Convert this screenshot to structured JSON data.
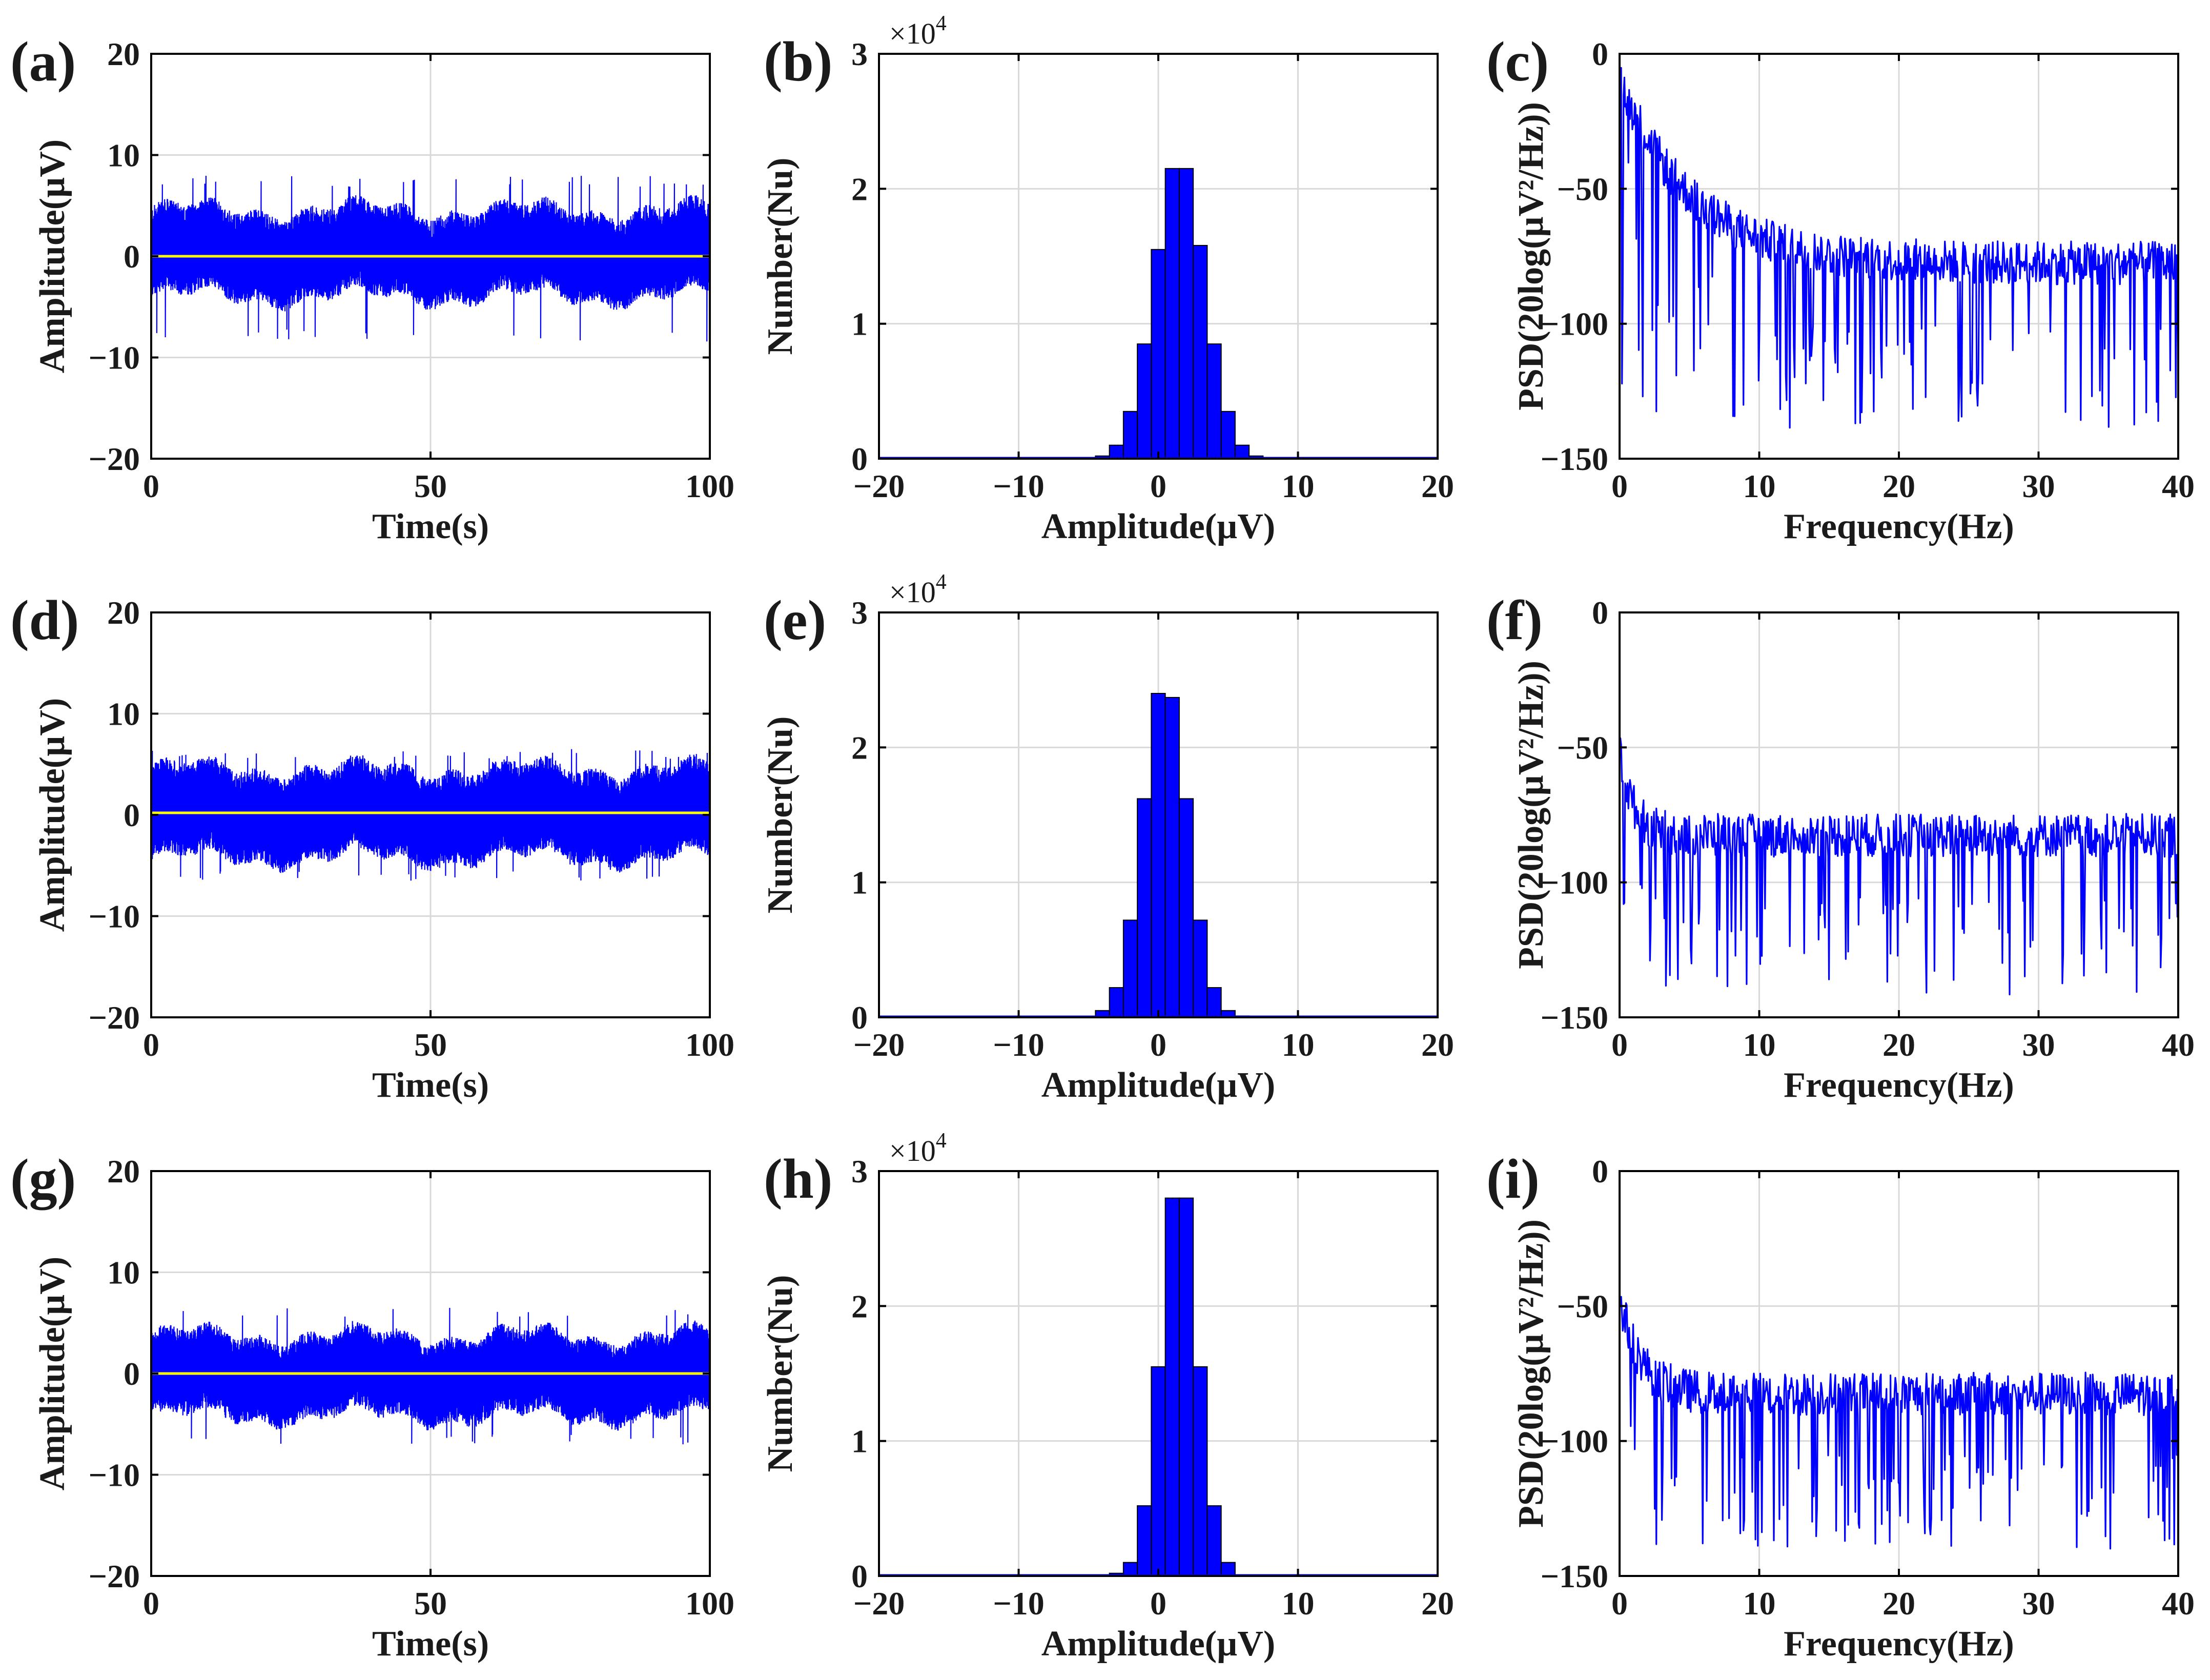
{
  "figure": {
    "colors": {
      "signal": "#0000ff",
      "mean_line": "#ffff00",
      "bar_fill": "#0000ff",
      "bar_edge": "#000000",
      "grid": "#d9d9d9",
      "axis": "#000000"
    }
  },
  "chart_data": [
    {
      "id": "a",
      "panel_label": "(a)",
      "type": "line",
      "title": "",
      "xlabel": "Time(s)",
      "ylabel": "Amplitude(µV)",
      "xlim": [
        0,
        100
      ],
      "ylim": [
        -20,
        20
      ],
      "xticks": [
        "0",
        "50",
        "100"
      ],
      "yticks": [
        "−20",
        "−10",
        "0",
        "10",
        "20"
      ],
      "series": [
        {
          "name": "signal",
          "kind": "noise",
          "mean": 0,
          "upper": 4.8,
          "lower": -4.2,
          "max": 8,
          "min": -8.5,
          "x_range": [
            0,
            100
          ]
        },
        {
          "name": "mean",
          "kind": "hline",
          "value": 0
        }
      ],
      "grid": true
    },
    {
      "id": "b",
      "panel_label": "(b)",
      "type": "bar",
      "title": "",
      "xlabel": "Amplitude(µV)",
      "ylabel": "Number(Nu)",
      "xlim": [
        -20,
        20
      ],
      "ylim": [
        0,
        3
      ],
      "y_exponent": "×10",
      "y_exponent_power": "4",
      "xticks": [
        "−20",
        "−10",
        "0",
        "10",
        "20"
      ],
      "yticks": [
        "0",
        "1",
        "2",
        "3"
      ],
      "bin_centers": [
        -5,
        -4,
        -3,
        -2,
        -1,
        0,
        1,
        2,
        3,
        4,
        5,
        6,
        7
      ],
      "values": [
        0.005,
        0.02,
        0.1,
        0.35,
        0.85,
        1.55,
        2.15,
        2.15,
        1.58,
        0.85,
        0.35,
        0.1,
        0.02
      ],
      "grid": true
    },
    {
      "id": "c",
      "panel_label": "(c)",
      "type": "line",
      "title": "",
      "xlabel": "Frequency(Hz)",
      "ylabel": "PSD(20log(µV²/Hz))",
      "xlim": [
        0,
        40
      ],
      "ylim": [
        -150,
        0
      ],
      "xticks": [
        "0",
        "10",
        "20",
        "30",
        "40"
      ],
      "yticks": [
        "−150",
        "−100",
        "−50",
        "0"
      ],
      "series": [
        {
          "name": "psd",
          "kind": "spectrum",
          "start_peak": -5,
          "floor_top": -68,
          "floor_mean": -80,
          "dip_min": -140,
          "decay_hz": 5
        }
      ],
      "grid": true
    },
    {
      "id": "d",
      "panel_label": "(d)",
      "type": "line",
      "title": "",
      "xlabel": "Time(s)",
      "ylabel": "Amplitude(µV)",
      "xlim": [
        0,
        100
      ],
      "ylim": [
        -20,
        20
      ],
      "xticks": [
        "0",
        "50",
        "100"
      ],
      "yticks": [
        "−20",
        "−10",
        "0",
        "10",
        "20"
      ],
      "series": [
        {
          "name": "signal",
          "kind": "noise",
          "mean": 0,
          "upper": 4.8,
          "lower": -4.5,
          "max": 6.5,
          "min": -6.5,
          "x_range": [
            0,
            100
          ]
        },
        {
          "name": "mean",
          "kind": "hline",
          "value": 0.2
        }
      ],
      "grid": true
    },
    {
      "id": "e",
      "panel_label": "(e)",
      "type": "bar",
      "title": "",
      "xlabel": "Amplitude(µV)",
      "ylabel": "Number(Nu)",
      "xlim": [
        -20,
        20
      ],
      "ylim": [
        0,
        3
      ],
      "y_exponent": "×10",
      "y_exponent_power": "4",
      "xticks": [
        "−20",
        "−10",
        "0",
        "10",
        "20"
      ],
      "yticks": [
        "0",
        "1",
        "2",
        "3"
      ],
      "bin_centers": [
        -4,
        -3,
        -2,
        -1,
        0,
        1,
        2,
        3,
        4,
        5,
        6
      ],
      "values": [
        0.05,
        0.22,
        0.72,
        1.62,
        2.4,
        2.37,
        1.62,
        0.72,
        0.22,
        0.05,
        0.01
      ],
      "grid": true
    },
    {
      "id": "f",
      "panel_label": "(f)",
      "type": "line",
      "title": "",
      "xlabel": "Frequency(Hz)",
      "ylabel": "PSD(20log(µV²/Hz))",
      "xlim": [
        0,
        40
      ],
      "ylim": [
        -150,
        0
      ],
      "xticks": [
        "0",
        "10",
        "20",
        "30",
        "40"
      ],
      "yticks": [
        "−150",
        "−100",
        "−50",
        "0"
      ],
      "series": [
        {
          "name": "psd",
          "kind": "spectrum",
          "start_peak": -52,
          "floor_top": -68,
          "floor_mean": -85,
          "dip_min": -142,
          "decay_hz": 1
        }
      ],
      "grid": true
    },
    {
      "id": "g",
      "panel_label": "(g)",
      "type": "line",
      "title": "",
      "xlabel": "Time(s)",
      "ylabel": "Amplitude(µV)",
      "xlim": [
        0,
        100
      ],
      "ylim": [
        -20,
        20
      ],
      "xticks": [
        "0",
        "50",
        "100"
      ],
      "yticks": [
        "−20",
        "−10",
        "0",
        "10",
        "20"
      ],
      "series": [
        {
          "name": "signal",
          "kind": "noise",
          "mean": 0,
          "upper": 4.0,
          "lower": -4.5,
          "max": 6.5,
          "min": -7,
          "x_range": [
            0,
            100
          ]
        },
        {
          "name": "mean",
          "kind": "hline",
          "value": 0
        }
      ],
      "grid": true
    },
    {
      "id": "h",
      "panel_label": "(h)",
      "type": "bar",
      "title": "",
      "xlabel": "Amplitude(µV)",
      "ylabel": "Number(Nu)",
      "xlim": [
        -20,
        20
      ],
      "ylim": [
        0,
        3
      ],
      "y_exponent": "×10",
      "y_exponent_power": "4",
      "xticks": [
        "−20",
        "−10",
        "0",
        "10",
        "20"
      ],
      "yticks": [
        "0",
        "1",
        "2",
        "3"
      ],
      "bin_centers": [
        -3,
        -2,
        -1,
        0,
        1,
        2,
        3,
        4,
        5
      ],
      "values": [
        0.02,
        0.1,
        0.52,
        1.55,
        2.8,
        2.8,
        1.55,
        0.52,
        0.1
      ],
      "grid": true
    },
    {
      "id": "i",
      "panel_label": "(i)",
      "type": "line",
      "title": "",
      "xlabel": "Frequency(Hz)",
      "ylabel": "PSD(20log(µV²/Hz))",
      "xlim": [
        0,
        40
      ],
      "ylim": [
        -150,
        0
      ],
      "xticks": [
        "0",
        "10",
        "20",
        "30",
        "40"
      ],
      "yticks": [
        "−150",
        "−100",
        "−50",
        "0"
      ],
      "series": [
        {
          "name": "psd",
          "kind": "spectrum",
          "start_peak": -46,
          "floor_top": -68,
          "floor_mean": -85,
          "dip_min": -140,
          "decay_hz": 1.5
        }
      ],
      "grid": true
    }
  ]
}
